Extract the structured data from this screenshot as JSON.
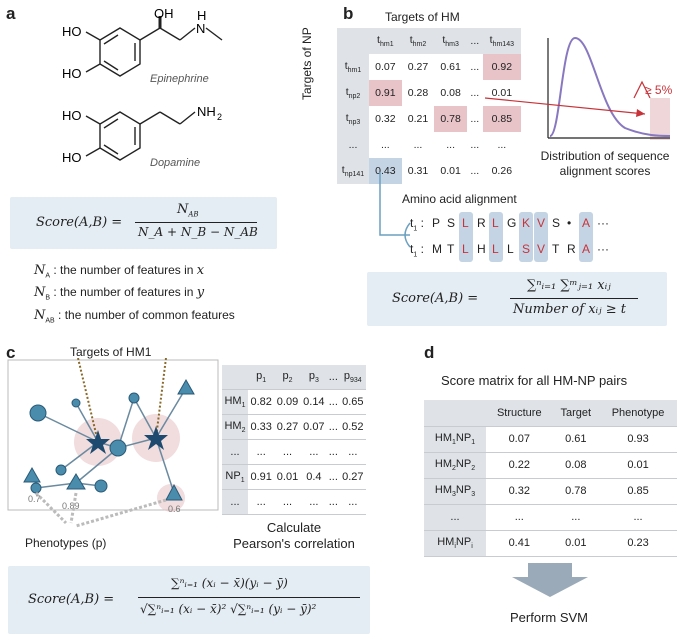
{
  "labels": {
    "a": "a",
    "b": "b",
    "c": "c",
    "d": "d"
  },
  "panel_a": {
    "mol1_oh_top": "OH",
    "mol1_nh": "H",
    "mol1_n": "N",
    "mol1_ho1": "HO",
    "mol1_ho2": "HO",
    "mol1_name": "Epinephrine",
    "mol2_ho1": "HO",
    "mol2_ho2": "HO",
    "mol2_nh2": "NH",
    "mol2_nh2_sub": "2",
    "mol2_name": "Dopamine",
    "formula_lhs": "Score(A,B) =",
    "formula_num": "N",
    "formula_num_sub": "AB",
    "formula_den": "N_A + N_B − N_AB",
    "defs": [
      {
        "sym": "N",
        "sub": "A",
        "text": " : the number of features in ",
        "var": "x"
      },
      {
        "sym": "N",
        "sub": "B",
        "text": " : the number of features in ",
        "var": "y"
      },
      {
        "sym": "N",
        "sub": "AB",
        "text": " : the number of common features",
        "var": ""
      }
    ]
  },
  "panel_b": {
    "title": "Targets of HM",
    "ylabel": "Targets of NP",
    "col_headers": [
      "t",
      "t",
      "t",
      "...",
      "t"
    ],
    "col_subs": [
      "hm1",
      "hm2",
      "hm3",
      "",
      "hm143"
    ],
    "row_headers": [
      "t",
      "t",
      "t",
      "...",
      "t"
    ],
    "row_subs": [
      "hm1",
      "np2",
      "np3",
      "",
      "np141"
    ],
    "rows": [
      [
        "0.07",
        "0.27",
        "0.61",
        "...",
        "0.92"
      ],
      [
        "0.91",
        "0.28",
        "0.08",
        "...",
        "0.01"
      ],
      [
        "0.32",
        "0.21",
        "0.78",
        "...",
        "0.85"
      ],
      [
        "...",
        "...",
        "...",
        "...",
        "..."
      ],
      [
        "0.43",
        "0.31",
        "0.01",
        "...",
        "0.26"
      ]
    ],
    "threshold_label": "≥ 5%",
    "dist_caption_1": "Distribution of sequence",
    "dist_caption_2": "alignment scores",
    "align_title": "Amino acid alignment",
    "seq1_label": "t",
    "seq1_sub": "1",
    "seq1": [
      "P",
      "S",
      "L",
      "R",
      "L",
      "G",
      "K",
      "V",
      "S",
      "•",
      "A",
      "···"
    ],
    "seq2_label": "t",
    "seq2_sub": "1",
    "seq2": [
      "M",
      "T",
      "L",
      "H",
      "L",
      "L",
      "S",
      "V",
      "T",
      "R",
      "A",
      "···"
    ],
    "highlight_cols": [
      2,
      4,
      6,
      7,
      10
    ],
    "formula_lhs": "Score(A,B) =",
    "formula_num": "∑ⁿᵢ₌₁ ∑ᵐⱼ₌₁ xᵢⱼ",
    "formula_den": "Number of xᵢⱼ ≥ t"
  },
  "panel_c": {
    "network_title": "Targets of HM1",
    "phenotypes_label": "Phenotypes (p)",
    "node_values": [
      "0.7",
      "0.89",
      "0.6"
    ],
    "col_headers": [
      "p",
      "p",
      "p",
      "...",
      "p"
    ],
    "col_subs": [
      "1",
      "2",
      "3",
      "",
      "934"
    ],
    "row_headers": [
      "HM",
      "HM",
      "...",
      "NP",
      "..."
    ],
    "row_subs": [
      "1",
      "2",
      "",
      "1",
      ""
    ],
    "rows": [
      [
        "0.82",
        "0.09",
        "0.14",
        "...",
        "0.65"
      ],
      [
        "0.33",
        "0.27",
        "0.07",
        "...",
        "0.52"
      ],
      [
        "...",
        "...",
        "...",
        "...",
        "..."
      ],
      [
        "0.91",
        "0.01",
        "0.4",
        "...",
        "0.27"
      ],
      [
        "...",
        "...",
        "...",
        "...",
        "..."
      ]
    ],
    "calc_1": "Calculate",
    "calc_2": "Pearson's correlation",
    "formula_lhs": "Score(A,B) =",
    "formula_num": "∑ⁿᵢ₌₁ (xᵢ − x̄)(yᵢ − ȳ)",
    "formula_den": "√∑ⁿᵢ₌₁ (xᵢ − x̄)² √∑ⁿᵢ₌₁ (yᵢ − ȳ)²"
  },
  "panel_d": {
    "title": "Score matrix for all HM-NP pairs",
    "col_headers": [
      "Structure",
      "Target",
      "Phenotype"
    ],
    "rows": [
      {
        "label": "HM",
        "s1": "1",
        "mid": "NP",
        "s2": "1",
        "values": [
          "0.07",
          "0.61",
          "0.93"
        ]
      },
      {
        "label": "HM",
        "s1": "2",
        "mid": "NP",
        "s2": "2",
        "values": [
          "0.22",
          "0.08",
          "0.01"
        ]
      },
      {
        "label": "HM",
        "s1": "3",
        "mid": "NP",
        "s2": "3",
        "values": [
          "0.32",
          "0.78",
          "0.85"
        ]
      },
      {
        "label": "...",
        "s1": "",
        "mid": "",
        "s2": "",
        "values": [
          "...",
          "...",
          "..."
        ]
      },
      {
        "label": "HM",
        "s1": "i",
        "mid": "NP",
        "s2": "i",
        "values": [
          "0.41",
          "0.01",
          "0.23"
        ]
      }
    ],
    "action": "Perform SVM"
  },
  "colors": {
    "box": "#e4edf4",
    "pink": "#e8c4c8",
    "blue_hl": "#c4d4e4",
    "red": "#c8333a",
    "node": "#4a8cac",
    "star": "#1d4a6e",
    "header": "#dfe3e8"
  }
}
